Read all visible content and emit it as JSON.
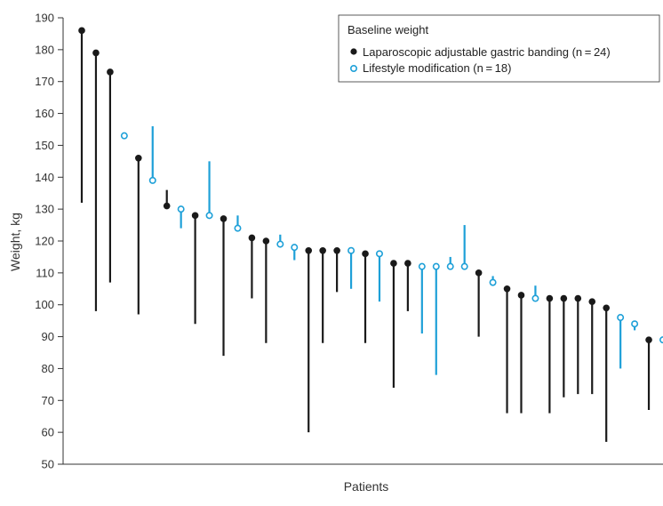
{
  "chart_data": {
    "type": "scatter",
    "xlabel": "Patients",
    "ylabel": "Weight, kg",
    "ylim": [
      50,
      190
    ],
    "yticks": [
      50,
      60,
      70,
      80,
      90,
      100,
      110,
      120,
      130,
      140,
      150,
      160,
      170,
      180,
      190
    ],
    "grid": false,
    "legend": {
      "title": "Baseline weight",
      "placement": "top-right",
      "entries": [
        {
          "series": "band",
          "label": "Laparoscopic adjustable gastric banding (n = 24)"
        },
        {
          "series": "life",
          "label": "Lifestyle modification (n = 18)"
        }
      ]
    },
    "series": [
      {
        "key": "band",
        "name": "Laparoscopic adjustable gastric banding (n = 24)",
        "color": "#1a1a1a",
        "marker": "filled-circle"
      },
      {
        "key": "life",
        "name": "Lifestyle modification (n = 18)",
        "color": "#1ea0d8",
        "marker": "open-circle"
      }
    ],
    "points_note": "Each patient: dot = baseline weight, vertical line extends to follow-up weight",
    "patients": [
      {
        "series": "band",
        "baseline": 186,
        "end": 132
      },
      {
        "series": "band",
        "baseline": 179,
        "end": 98
      },
      {
        "series": "band",
        "baseline": 173,
        "end": 107
      },
      {
        "series": "life",
        "baseline": 153,
        "end": 153
      },
      {
        "series": "band",
        "baseline": 146,
        "end": 97
      },
      {
        "series": "life",
        "baseline": 139,
        "end": 156
      },
      {
        "series": "band",
        "baseline": 131,
        "end": 136
      },
      {
        "series": "life",
        "baseline": 130,
        "end": 124
      },
      {
        "series": "band",
        "baseline": 128,
        "end": 94
      },
      {
        "series": "life",
        "baseline": 128,
        "end": 145
      },
      {
        "series": "band",
        "baseline": 127,
        "end": 84
      },
      {
        "series": "life",
        "baseline": 124,
        "end": 128
      },
      {
        "series": "band",
        "baseline": 121,
        "end": 102
      },
      {
        "series": "band",
        "baseline": 120,
        "end": 88
      },
      {
        "series": "life",
        "baseline": 119,
        "end": 122
      },
      {
        "series": "life",
        "baseline": 118,
        "end": 114
      },
      {
        "series": "band",
        "baseline": 117,
        "end": 60
      },
      {
        "series": "band",
        "baseline": 117,
        "end": 88
      },
      {
        "series": "band",
        "baseline": 117,
        "end": 104
      },
      {
        "series": "life",
        "baseline": 117,
        "end": 105
      },
      {
        "series": "band",
        "baseline": 116,
        "end": 88
      },
      {
        "series": "life",
        "baseline": 116,
        "end": 101
      },
      {
        "series": "band",
        "baseline": 113,
        "end": 74
      },
      {
        "series": "band",
        "baseline": 113,
        "end": 98
      },
      {
        "series": "life",
        "baseline": 112,
        "end": 91
      },
      {
        "series": "life",
        "baseline": 112,
        "end": 78
      },
      {
        "series": "life",
        "baseline": 112,
        "end": 115
      },
      {
        "series": "life",
        "baseline": 112,
        "end": 125
      },
      {
        "series": "band",
        "baseline": 110,
        "end": 90
      },
      {
        "series": "life",
        "baseline": 107,
        "end": 109
      },
      {
        "series": "band",
        "baseline": 105,
        "end": 66
      },
      {
        "series": "band",
        "baseline": 103,
        "end": 66
      },
      {
        "series": "life",
        "baseline": 102,
        "end": 106
      },
      {
        "series": "band",
        "baseline": 102,
        "end": 66
      },
      {
        "series": "band",
        "baseline": 102,
        "end": 71
      },
      {
        "series": "band",
        "baseline": 102,
        "end": 72
      },
      {
        "series": "band",
        "baseline": 101,
        "end": 72
      },
      {
        "series": "band",
        "baseline": 99,
        "end": 57
      },
      {
        "series": "life",
        "baseline": 96,
        "end": 80
      },
      {
        "series": "life",
        "baseline": 94,
        "end": 92
      },
      {
        "series": "band",
        "baseline": 89,
        "end": 67
      },
      {
        "series": "life",
        "baseline": 89,
        "end": 89
      }
    ]
  }
}
